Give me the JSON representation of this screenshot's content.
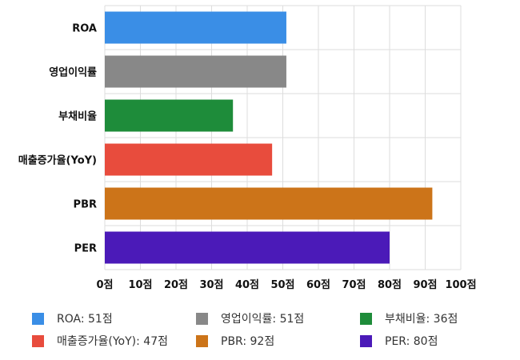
{
  "chart_data": {
    "type": "bar",
    "orientation": "horizontal",
    "categories": [
      "ROA",
      "영업이익률",
      "부채비율",
      "매출증가율(YoY)",
      "PBR",
      "PER"
    ],
    "values": [
      51,
      51,
      36,
      47,
      92,
      80
    ],
    "colors": [
      "#3a8ee6",
      "#888888",
      "#1e8c3a",
      "#e84c3d",
      "#cc7419",
      "#4b1ab8"
    ],
    "xlim": [
      0,
      100
    ],
    "x_ticks": [
      "0점",
      "10점",
      "20점",
      "30점",
      "40점",
      "50점",
      "60점",
      "70점",
      "80점",
      "90점",
      "100점"
    ],
    "grid": true,
    "legend_position": "bottom",
    "legend": [
      "ROA: 51점",
      "영업이익률: 51점",
      "부채비율: 36점",
      "매출증가율(YoY): 47점",
      "PBR: 92점",
      "PER: 80점"
    ]
  }
}
